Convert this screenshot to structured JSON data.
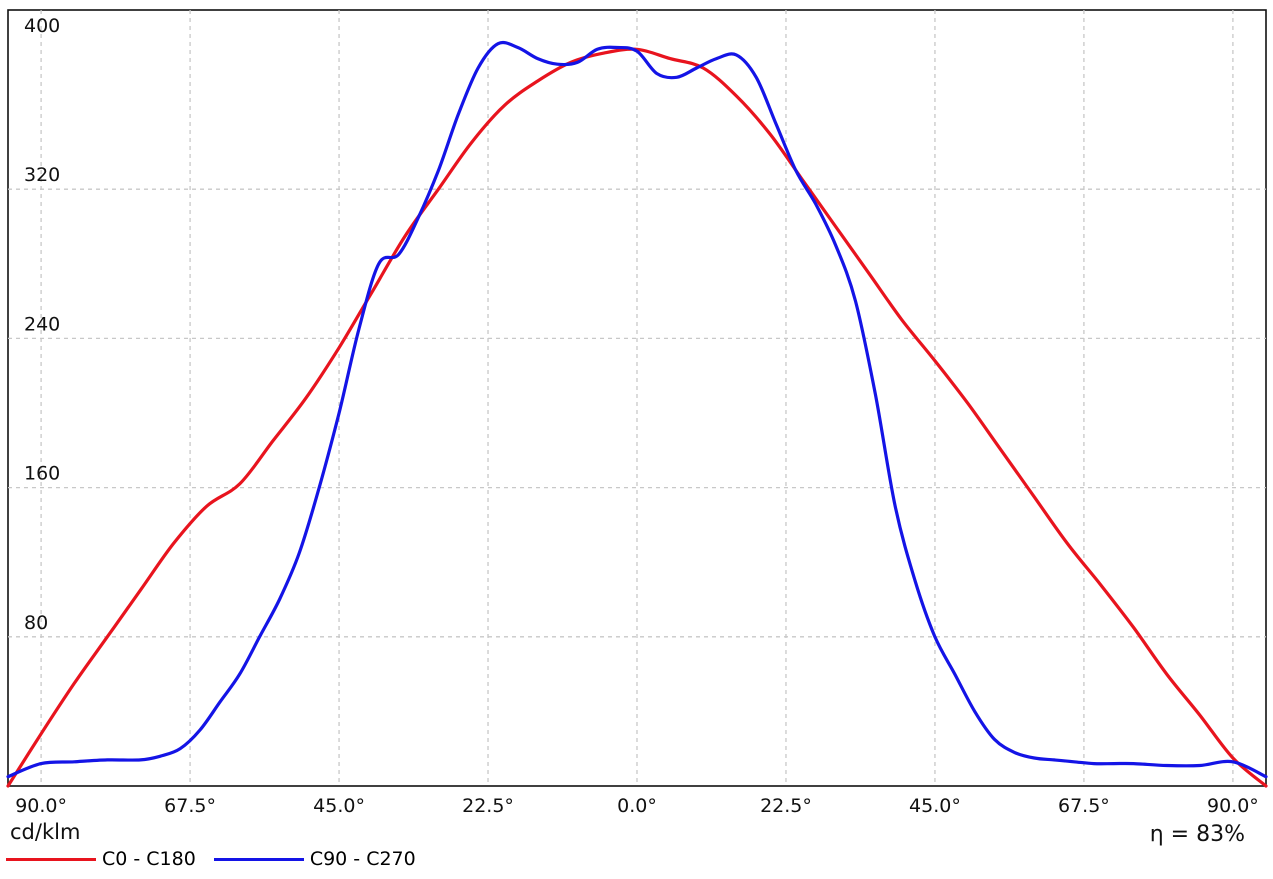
{
  "chart_data": {
    "type": "line",
    "ylabel": "cd/klm",
    "annotation": "η = 83%",
    "ylim": [
      0,
      400
    ],
    "xlim": [
      -95,
      95
    ],
    "y_ticks": [
      80,
      160,
      240,
      320,
      400
    ],
    "x_ticks": [
      {
        "value": -90,
        "label": "90.0°"
      },
      {
        "value": -67.5,
        "label": "67.5°"
      },
      {
        "value": -45,
        "label": "45.0°"
      },
      {
        "value": -22.5,
        "label": "22.5°"
      },
      {
        "value": 0,
        "label": "0.0°"
      },
      {
        "value": 22.5,
        "label": "22.5°"
      },
      {
        "value": 45,
        "label": "45.0°"
      },
      {
        "value": 67.5,
        "label": "67.5°"
      },
      {
        "value": 90,
        "label": "90.0°"
      }
    ],
    "grid": true,
    "legend_position": "bottom-left",
    "series": [
      {
        "name": "C0 - C180",
        "color": "#e8141e",
        "x": [
          -95,
          -90,
          -85,
          -80,
          -75,
          -70,
          -65,
          -60,
          -55,
          -50,
          -45,
          -40,
          -35,
          -30,
          -25,
          -20,
          -15,
          -10,
          -5,
          0,
          5,
          10,
          15,
          20,
          25,
          30,
          35,
          40,
          45,
          50,
          55,
          60,
          65,
          70,
          75,
          80,
          85,
          90,
          95
        ],
        "values": [
          0,
          28,
          55,
          80,
          105,
          130,
          150,
          162,
          185,
          208,
          235,
          265,
          295,
          320,
          345,
          365,
          378,
          388,
          393,
          395,
          390,
          385,
          370,
          350,
          325,
          300,
          275,
          250,
          228,
          205,
          180,
          155,
          130,
          108,
          85,
          60,
          38,
          15,
          0
        ]
      },
      {
        "name": "C90 - C270",
        "color": "#1414e6",
        "x": [
          -95,
          -90,
          -85,
          -80,
          -75,
          -72,
          -69,
          -66,
          -63,
          -60,
          -57,
          -54,
          -51,
          -48,
          -45,
          -42,
          -39,
          -36,
          -33,
          -30,
          -27,
          -24,
          -21,
          -18,
          -15,
          -12,
          -9,
          -6,
          -3,
          0,
          3,
          6,
          9,
          12,
          15,
          18,
          21,
          24,
          27,
          30,
          33,
          36,
          39,
          42,
          45,
          48,
          51,
          54,
          57,
          60,
          63,
          66,
          69,
          72,
          75,
          80,
          85,
          90,
          95
        ],
        "values": [
          5,
          12,
          13,
          14,
          14,
          16,
          20,
          30,
          45,
          60,
          80,
          100,
          125,
          160,
          200,
          245,
          280,
          285,
          305,
          330,
          360,
          385,
          398,
          396,
          390,
          387,
          388,
          395,
          396,
          394,
          382,
          380,
          385,
          390,
          392,
          380,
          355,
          330,
          312,
          290,
          260,
          210,
          150,
          110,
          80,
          60,
          40,
          25,
          18,
          15,
          14,
          13,
          12,
          12,
          12,
          11,
          11,
          13,
          5
        ]
      }
    ]
  }
}
